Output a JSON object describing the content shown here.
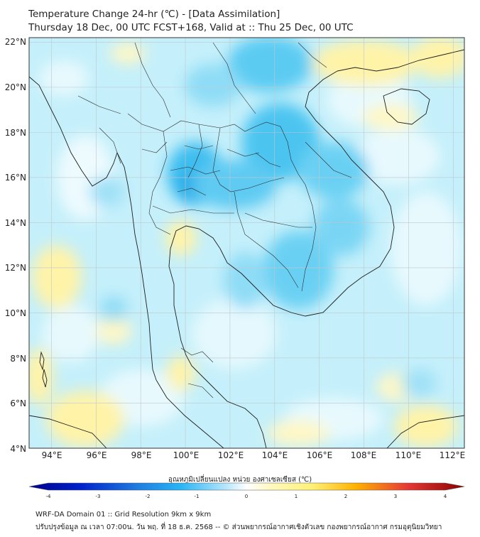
{
  "header": {
    "title": "Temperature Change 24-hr (℃) - [Data Assimilation]",
    "subtitle": "Thursday 18 Dec, 00 UTC FCST+168, Valid at :: Thu 25 Dec, 00 UTC"
  },
  "map": {
    "lat_labels": [
      "22°N",
      "20°N",
      "18°N",
      "16°N",
      "14°N",
      "12°N",
      "10°N",
      "8°N",
      "6°N",
      "4°N"
    ],
    "lon_labels": [
      "94°E",
      "96°E",
      "98°E",
      "100°E",
      "102°E",
      "104°E",
      "106°E",
      "108°E",
      "110°E",
      "112°E"
    ],
    "extent": {
      "lon_min": 93,
      "lon_max": 112.5,
      "lat_min": 4,
      "lat_max": 22.2
    },
    "gridlines": true
  },
  "colorbar": {
    "title": "อุณหภูมิเปลี่ยนแปลง หน่วย องศาเซลเซียส (℃)",
    "tick_labels": [
      "-4",
      "-3",
      "-2",
      "-1",
      "0",
      "1",
      "2",
      "3",
      "4"
    ],
    "range": [
      -4,
      4
    ],
    "colors": {
      "cold_end": "#00008b",
      "cool": "#29b6f6",
      "neutral": "#ffffff",
      "warm": "#fff59d",
      "hot_end": "#8b0000"
    }
  },
  "footer": {
    "line1": "WRF-DA Domain 01 :: Grid Resolution 9km x 9km",
    "line2": "ปรับปรุงข้อมูล ณ เวลา 07:00น. วัน พฤ. ที่ 18 ธ.ค. 2568 -- © ส่วนพยากรณ์อากาศเชิงตัวเลข กองพยากรณ์อากาศ กรมอุตุนิยมวิทยา"
  }
}
